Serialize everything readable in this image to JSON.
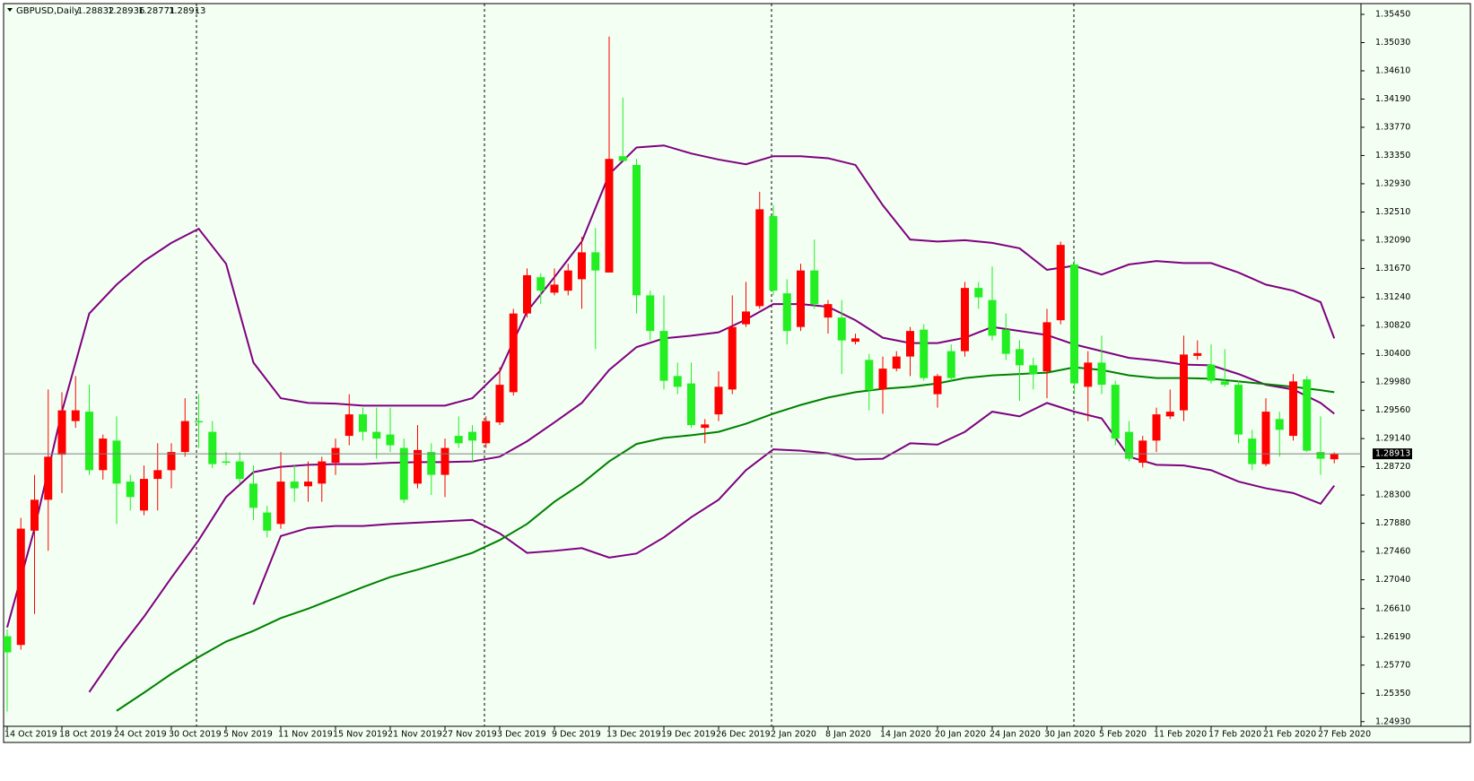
{
  "chart_data": {
    "type": "candlestick",
    "title": "GBPUSD,Daily",
    "header_ohlc": [
      1.28832,
      1.28936,
      1.28771,
      1.28913
    ],
    "up_color": "#ff0000",
    "down_color": "#22ee22",
    "last_price": 1.28913,
    "categories": [
      "14 Oct 2019",
      null,
      null,
      null,
      "18 Oct 2019",
      null,
      null,
      null,
      "24 Oct 2019",
      null,
      null,
      null,
      "30 Oct 2019",
      null,
      null,
      null,
      "5 Nov 2019",
      null,
      null,
      null,
      "11 Nov 2019",
      null,
      null,
      null,
      "15 Nov 2019",
      null,
      null,
      null,
      "21 Nov 2019",
      null,
      null,
      null,
      "27 Nov 2019",
      null,
      null,
      null,
      "3 Dec 2019",
      null,
      null,
      null,
      "9 Dec 2019",
      null,
      null,
      null,
      "13 Dec 2019",
      null,
      null,
      null,
      "19 Dec 2019",
      null,
      null,
      null,
      "26 Dec 2019",
      null,
      null,
      null,
      "2 Jan 2020",
      null,
      null,
      null,
      "8 Jan 2020",
      null,
      null,
      null,
      "14 Jan 2020",
      null,
      null,
      null,
      "20 Jan 2020",
      null,
      null,
      null,
      "24 Jan 2020",
      null,
      null,
      null,
      "30 Jan 2020",
      null,
      null,
      null,
      "5 Feb 2020",
      null,
      null,
      null,
      "11 Feb 2020",
      null,
      null,
      null,
      "17 Feb 2020",
      null,
      null,
      null,
      "21 Feb 2020",
      null,
      null,
      null,
      "27 Feb 2020",
      null
    ],
    "open": [
      1.262,
      1.2607,
      1.2777,
      1.2823,
      1.289,
      1.294,
      1.2954,
      1.2867,
      1.2911,
      1.285,
      1.2807,
      1.2854,
      1.2867,
      1.2894,
      1.294,
      1.2924,
      1.288,
      1.288,
      1.2847,
      1.2804,
      1.2787,
      1.285,
      1.2843,
      1.2847,
      1.2878,
      1.2918,
      1.295,
      1.2924,
      1.292,
      1.29,
      1.2847,
      1.2894,
      1.286,
      1.2918,
      1.2924,
      1.2907,
      1.2938,
      1.2983,
      1.31,
      1.3154,
      1.3131,
      1.3134,
      1.3151,
      1.3191,
      1.3161,
      1.3334,
      1.3321,
      1.3127,
      1.3074,
      1.3007,
      1.2996,
      1.293,
      1.295,
      1.2987,
      1.3084,
      1.3111,
      1.3245,
      1.313,
      1.308,
      1.3164,
      1.3094,
      1.3094,
      1.3058,
      1.3031,
      1.2987,
      1.3018,
      1.3036,
      1.3076,
      1.298,
      1.3044,
      1.3044,
      1.3138,
      1.312,
      1.3076,
      1.3047,
      1.3023,
      1.3014,
      1.309,
      1.3173,
      1.2991,
      1.3027,
      1.2994,
      1.2924,
      1.2878,
      1.2911,
      1.2947,
      1.2956,
      1.3037,
      1.3024,
      1.2999,
      1.2994,
      1.2914,
      1.2876,
      1.2943,
      1.2918,
      1.3002,
      1.2894,
      1.28832
    ],
    "high": [
      1.263,
      1.2796,
      1.286,
      1.2987,
      1.2983,
      1.3007,
      1.2994,
      1.292,
      1.2947,
      1.286,
      1.2874,
      1.2907,
      1.2907,
      1.2974,
      1.298,
      1.294,
      1.2894,
      1.2894,
      1.2874,
      1.2814,
      1.2894,
      1.2874,
      1.288,
      1.2887,
      1.2914,
      1.298,
      1.296,
      1.296,
      1.296,
      1.2914,
      1.2934,
      1.2907,
      1.2914,
      1.2947,
      1.2934,
      1.2947,
      1.302,
      1.3107,
      1.3167,
      1.316,
      1.3167,
      1.3174,
      1.3214,
      1.3227,
      1.3512,
      1.3421,
      1.333,
      1.3134,
      1.3127,
      1.3027,
      1.3027,
      1.2943,
      1.3014,
      1.3127,
      1.3147,
      1.3281,
      1.3261,
      1.3151,
      1.3174,
      1.321,
      1.312,
      1.312,
      1.307,
      1.304,
      1.3036,
      1.3044,
      1.308,
      1.3084,
      1.301,
      1.3054,
      1.3147,
      1.3147,
      1.317,
      1.31,
      1.306,
      1.3034,
      1.3107,
      1.3207,
      1.318,
      1.3044,
      1.3067,
      1.3,
      1.294,
      1.2918,
      1.296,
      1.2987,
      1.3067,
      1.306,
      1.3054,
      1.3047,
      1.3,
      1.2927,
      1.2974,
      1.2954,
      1.301,
      1.3007,
      1.2947,
      1.28936
    ],
    "low": [
      1.2508,
      1.26,
      1.2653,
      1.2747,
      1.2833,
      1.293,
      1.286,
      1.2853,
      1.2787,
      1.2807,
      1.28,
      1.2807,
      1.284,
      1.2887,
      1.29,
      1.287,
      1.2874,
      1.2847,
      1.2793,
      1.2767,
      1.278,
      1.282,
      1.282,
      1.282,
      1.286,
      1.2904,
      1.2911,
      1.2884,
      1.2894,
      1.2818,
      1.284,
      1.283,
      1.2827,
      1.29,
      1.288,
      1.29,
      1.2934,
      1.2978,
      1.3094,
      1.3114,
      1.3127,
      1.3127,
      1.3107,
      1.3047,
      1.3161,
      1.3327,
      1.31,
      1.306,
      1.2987,
      1.298,
      1.293,
      1.2907,
      1.294,
      1.298,
      1.308,
      1.3107,
      1.3127,
      1.3054,
      1.3074,
      1.3107,
      1.307,
      1.301,
      1.3054,
      1.2956,
      1.2951,
      1.3014,
      1.3007,
      1.3,
      1.296,
      1.3,
      1.3036,
      1.3107,
      1.306,
      1.3031,
      1.297,
      1.2987,
      1.2974,
      1.3084,
      1.298,
      1.294,
      1.298,
      1.2904,
      1.288,
      1.2871,
      1.2894,
      1.2943,
      1.294,
      1.3031,
      1.2996,
      1.2991,
      1.2907,
      1.2867,
      1.2873,
      1.2887,
      1.2911,
      1.2894,
      1.286,
      1.28771
    ],
    "close": [
      1.2596,
      1.278,
      1.2823,
      1.2887,
      1.2956,
      1.2956,
      1.2867,
      1.2914,
      1.2847,
      1.2827,
      1.2854,
      1.2867,
      1.2894,
      1.294,
      1.2938,
      1.2876,
      1.2878,
      1.2854,
      1.2811,
      1.2777,
      1.285,
      1.284,
      1.285,
      1.288,
      1.29,
      1.295,
      1.2924,
      1.2914,
      1.2904,
      1.2823,
      1.2897,
      1.286,
      1.29,
      1.2907,
      1.2911,
      1.294,
      1.2994,
      1.31,
      1.3157,
      1.3134,
      1.3143,
      1.3164,
      1.3191,
      1.3164,
      1.333,
      1.3327,
      1.3127,
      1.3074,
      1.3,
      1.2991,
      1.2934,
      1.2935,
      1.2991,
      1.308,
      1.3103,
      1.3255,
      1.3134,
      1.3074,
      1.3164,
      1.3114,
      1.3114,
      1.306,
      1.3063,
      1.2986,
      1.3018,
      1.3036,
      1.3074,
      1.3004,
      1.3007,
      1.3004,
      1.3138,
      1.3124,
      1.3067,
      1.304,
      1.3023,
      1.301,
      1.3087,
      1.3202,
      1.2996,
      1.3027,
      1.2994,
      1.2914,
      1.2884,
      1.2911,
      1.295,
      1.2954,
      1.3039,
      1.3041,
      1.3,
      1.2994,
      1.292,
      1.2876,
      1.2954,
      1.2927,
      1.2999,
      1.2896,
      1.2884,
      1.28913
    ],
    "x": [
      0,
      2,
      4,
      6,
      8,
      10,
      12,
      14,
      16,
      18,
      20,
      22,
      24,
      26,
      28,
      30,
      32,
      34,
      36,
      38,
      40,
      42,
      44,
      46,
      48,
      50,
      52,
      54,
      56,
      58,
      60,
      62,
      64,
      66,
      68,
      70,
      72,
      74,
      76,
      78,
      80,
      82,
      84,
      86,
      88,
      90,
      92,
      94,
      96,
      97
    ],
    "series": [
      {
        "color": "#800080",
        "values": [
          1.2633,
          1.278,
          1.2954,
          1.31,
          1.3143,
          1.3178,
          1.3205,
          1.3226,
          1.3174,
          1.3027,
          1.2974,
          1.2967,
          1.2966,
          1.2963,
          1.2963,
          1.2963,
          1.2963,
          1.2974,
          1.3014,
          1.3103,
          1.3154,
          1.3207,
          1.3307,
          1.3347,
          1.335,
          1.3338,
          1.3329,
          1.3322,
          1.3334,
          1.3334,
          1.3331,
          1.3321,
          1.3261,
          1.321,
          1.3207,
          1.3209,
          1.3205,
          1.3197,
          1.3165,
          1.3171,
          1.3158,
          1.3173,
          1.3178,
          1.3175,
          1.3175,
          1.3161,
          1.3143,
          1.3134,
          1.3117,
          1.3063
        ]
      },
      {
        "color": "#800080",
        "values": [
          null,
          null,
          null,
          1.2537,
          1.2596,
          1.2649,
          1.2707,
          1.2763,
          1.2827,
          1.2864,
          1.2872,
          1.2875,
          1.2876,
          1.2876,
          1.2878,
          1.2879,
          1.2879,
          1.288,
          1.2887,
          1.291,
          1.2938,
          1.2967,
          1.3016,
          1.305,
          1.3063,
          1.3067,
          1.3072,
          1.3091,
          1.3114,
          1.3114,
          1.311,
          1.309,
          1.3064,
          1.3056,
          1.3056,
          1.3064,
          1.308,
          1.3074,
          1.3068,
          1.3054,
          1.3044,
          1.3034,
          1.303,
          1.3024,
          1.3023,
          1.301,
          1.2994,
          1.2987,
          1.2967,
          1.2951
        ]
      },
      {
        "color": "#800080",
        "values": [
          null,
          null,
          null,
          null,
          null,
          null,
          null,
          null,
          null,
          1.2667,
          1.2769,
          1.2781,
          1.2784,
          1.2784,
          1.2787,
          1.2789,
          1.2791,
          1.2793,
          1.2773,
          1.2744,
          1.2747,
          1.2751,
          1.2737,
          1.2743,
          1.2767,
          1.2797,
          1.2823,
          1.2867,
          1.2898,
          1.2896,
          1.2892,
          1.2883,
          1.2884,
          1.2907,
          1.2905,
          1.2924,
          1.2954,
          1.2947,
          1.2967,
          1.2954,
          1.2944,
          1.2887,
          1.2875,
          1.2874,
          1.2867,
          1.285,
          1.284,
          1.2833,
          1.2817,
          1.2844
        ]
      },
      {
        "color": "#008000",
        "values": [
          null,
          null,
          null,
          null,
          1.2509,
          1.2536,
          1.2564,
          1.2589,
          1.2612,
          1.2628,
          1.2647,
          1.2661,
          1.2677,
          1.2693,
          1.2708,
          1.2719,
          1.2731,
          1.2744,
          1.2763,
          1.2787,
          1.282,
          1.2847,
          1.288,
          1.2906,
          1.2915,
          1.2919,
          1.2924,
          1.2936,
          1.2951,
          1.2964,
          1.2975,
          1.2983,
          1.2988,
          1.2991,
          1.2996,
          1.3004,
          1.3008,
          1.301,
          1.3012,
          1.302,
          1.3016,
          1.3008,
          1.3004,
          1.3004,
          1.3003,
          1.2999,
          1.2995,
          1.2991,
          1.2986,
          1.2983
        ]
      }
    ],
    "ylim": [
      1.2486,
      1.3561
    ],
    "yticks": [
      {
        "value": 1.3545,
        "label": "1.35450"
      },
      {
        "value": 1.3503,
        "label": "1.35030"
      },
      {
        "value": 1.3461,
        "label": "1.34610"
      },
      {
        "value": 1.3419,
        "label": "1.34190"
      },
      {
        "value": 1.3377,
        "label": "1.33770"
      },
      {
        "value": 1.3335,
        "label": "1.33350"
      },
      {
        "value": 1.3293,
        "label": "1.32930"
      },
      {
        "value": 1.3251,
        "label": "1.32510"
      },
      {
        "value": 1.3209,
        "label": "1.32090"
      },
      {
        "value": 1.3167,
        "label": "1.31670"
      },
      {
        "value": 1.3124,
        "label": "1.31240"
      },
      {
        "value": 1.3082,
        "label": "1.30820"
      },
      {
        "value": 1.304,
        "label": "1.30400"
      },
      {
        "value": 1.2998,
        "label": "1.29980"
      },
      {
        "value": 1.2956,
        "label": "1.29560"
      },
      {
        "value": 1.2914,
        "label": "1.29140"
      },
      {
        "value": 1.2872,
        "label": "1.28720"
      },
      {
        "value": 1.283,
        "label": "1.28300"
      },
      {
        "value": 1.2788,
        "label": "1.27880"
      },
      {
        "value": 1.2746,
        "label": "1.27460"
      },
      {
        "value": 1.2704,
        "label": "1.27040"
      },
      {
        "value": 1.2661,
        "label": "1.26610"
      },
      {
        "value": 1.2619,
        "label": "1.26190"
      },
      {
        "value": 1.2577,
        "label": "1.25770"
      },
      {
        "value": 1.2535,
        "label": "1.25350"
      },
      {
        "value": 1.2493,
        "label": "1.24930"
      }
    ]
  }
}
